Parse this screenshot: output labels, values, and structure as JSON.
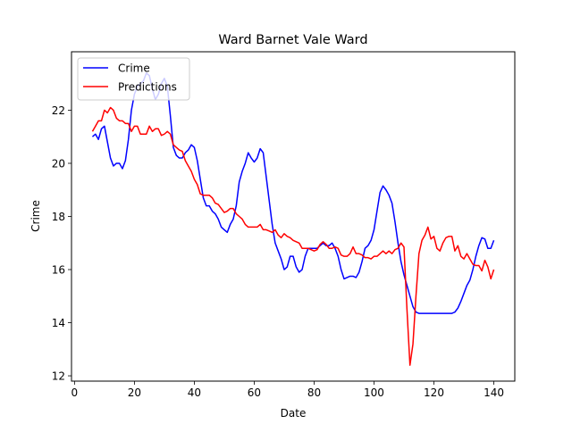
{
  "chart_data": {
    "type": "line",
    "title": "Ward Barnet Vale Ward",
    "xlabel": "Date",
    "ylabel": "Crime",
    "xlim": [
      -1,
      147
    ],
    "ylim": [
      11.8,
      24.2
    ],
    "x_ticks": [
      0,
      20,
      40,
      60,
      80,
      100,
      120,
      140
    ],
    "y_ticks": [
      12,
      14,
      16,
      18,
      20,
      22
    ],
    "grid": false,
    "legend_position": "upper-left",
    "series": [
      {
        "name": "Crime",
        "color": "#0000ff",
        "points": [
          [
            6,
            21.0
          ],
          [
            7,
            21.1
          ],
          [
            8,
            20.9
          ],
          [
            9,
            21.3
          ],
          [
            10,
            21.4
          ],
          [
            11,
            20.8
          ],
          [
            12,
            20.2
          ],
          [
            13,
            19.9
          ],
          [
            14,
            20.0
          ],
          [
            15,
            20.0
          ],
          [
            16,
            19.8
          ],
          [
            17,
            20.1
          ],
          [
            18,
            20.9
          ],
          [
            19,
            22.0
          ],
          [
            20,
            22.6
          ],
          [
            21,
            22.9
          ],
          [
            22,
            23.0
          ],
          [
            23,
            23.1
          ],
          [
            24,
            23.4
          ],
          [
            25,
            23.3
          ],
          [
            26,
            22.8
          ],
          [
            27,
            22.4
          ],
          [
            28,
            22.6
          ],
          [
            29,
            23.0
          ],
          [
            30,
            23.2
          ],
          [
            31,
            22.9
          ],
          [
            32,
            21.8
          ],
          [
            33,
            20.6
          ],
          [
            34,
            20.3
          ],
          [
            35,
            20.2
          ],
          [
            36,
            20.2
          ],
          [
            37,
            20.4
          ],
          [
            38,
            20.5
          ],
          [
            39,
            20.7
          ],
          [
            40,
            20.6
          ],
          [
            41,
            20.1
          ],
          [
            42,
            19.4
          ],
          [
            43,
            18.7
          ],
          [
            44,
            18.4
          ],
          [
            45,
            18.4
          ],
          [
            46,
            18.2
          ],
          [
            47,
            18.1
          ],
          [
            48,
            17.9
          ],
          [
            49,
            17.6
          ],
          [
            50,
            17.5
          ],
          [
            51,
            17.4
          ],
          [
            52,
            17.7
          ],
          [
            53,
            17.9
          ],
          [
            54,
            18.4
          ],
          [
            55,
            19.3
          ],
          [
            56,
            19.7
          ],
          [
            57,
            20.0
          ],
          [
            58,
            20.4
          ],
          [
            59,
            20.2
          ],
          [
            60,
            20.05
          ],
          [
            61,
            20.2
          ],
          [
            62,
            20.55
          ],
          [
            63,
            20.4
          ],
          [
            64,
            19.5
          ],
          [
            65,
            18.6
          ],
          [
            66,
            17.7
          ],
          [
            67,
            17.0
          ],
          [
            68,
            16.7
          ],
          [
            69,
            16.4
          ],
          [
            70,
            16.0
          ],
          [
            71,
            16.1
          ],
          [
            72,
            16.5
          ],
          [
            73,
            16.5
          ],
          [
            74,
            16.1
          ],
          [
            75,
            15.9
          ],
          [
            76,
            16.0
          ],
          [
            77,
            16.5
          ],
          [
            78,
            16.8
          ],
          [
            79,
            16.8
          ],
          [
            80,
            16.8
          ],
          [
            81,
            16.8
          ],
          [
            82,
            16.9
          ],
          [
            83,
            17.0
          ],
          [
            84,
            16.9
          ],
          [
            85,
            16.9
          ],
          [
            86,
            17.0
          ],
          [
            87,
            16.8
          ],
          [
            88,
            16.5
          ],
          [
            89,
            16.0
          ],
          [
            90,
            15.65
          ],
          [
            91,
            15.7
          ],
          [
            92,
            15.75
          ],
          [
            93,
            15.75
          ],
          [
            94,
            15.7
          ],
          [
            95,
            15.9
          ],
          [
            96,
            16.3
          ],
          [
            97,
            16.8
          ],
          [
            98,
            16.9
          ],
          [
            99,
            17.1
          ],
          [
            100,
            17.5
          ],
          [
            101,
            18.2
          ],
          [
            102,
            18.9
          ],
          [
            103,
            19.15
          ],
          [
            104,
            19.0
          ],
          [
            105,
            18.8
          ],
          [
            106,
            18.5
          ],
          [
            107,
            17.8
          ],
          [
            108,
            17.0
          ],
          [
            109,
            16.3
          ],
          [
            110,
            15.8
          ],
          [
            111,
            15.4
          ],
          [
            112,
            15.0
          ],
          [
            113,
            14.6
          ],
          [
            114,
            14.4
          ],
          [
            115,
            14.35
          ],
          [
            116,
            14.35
          ],
          [
            117,
            14.35
          ],
          [
            118,
            14.35
          ],
          [
            119,
            14.35
          ],
          [
            120,
            14.35
          ],
          [
            121,
            14.35
          ],
          [
            122,
            14.35
          ],
          [
            123,
            14.35
          ],
          [
            124,
            14.35
          ],
          [
            125,
            14.35
          ],
          [
            126,
            14.35
          ],
          [
            127,
            14.4
          ],
          [
            128,
            14.55
          ],
          [
            129,
            14.8
          ],
          [
            130,
            15.1
          ],
          [
            131,
            15.4
          ],
          [
            132,
            15.6
          ],
          [
            133,
            16.0
          ],
          [
            134,
            16.5
          ],
          [
            135,
            16.9
          ],
          [
            136,
            17.2
          ],
          [
            137,
            17.15
          ],
          [
            138,
            16.8
          ],
          [
            139,
            16.8
          ],
          [
            140,
            17.1
          ]
        ]
      },
      {
        "name": "Predictions",
        "color": "#ff0000",
        "points": [
          [
            6,
            21.2
          ],
          [
            7,
            21.4
          ],
          [
            8,
            21.6
          ],
          [
            9,
            21.6
          ],
          [
            10,
            22.0
          ],
          [
            11,
            21.9
          ],
          [
            12,
            22.1
          ],
          [
            13,
            22.0
          ],
          [
            14,
            21.7
          ],
          [
            15,
            21.6
          ],
          [
            16,
            21.6
          ],
          [
            17,
            21.5
          ],
          [
            18,
            21.5
          ],
          [
            19,
            21.2
          ],
          [
            20,
            21.4
          ],
          [
            21,
            21.4
          ],
          [
            22,
            21.1
          ],
          [
            23,
            21.1
          ],
          [
            24,
            21.1
          ],
          [
            25,
            21.4
          ],
          [
            26,
            21.2
          ],
          [
            27,
            21.3
          ],
          [
            28,
            21.3
          ],
          [
            29,
            21.05
          ],
          [
            30,
            21.1
          ],
          [
            31,
            21.2
          ],
          [
            32,
            21.1
          ],
          [
            33,
            20.7
          ],
          [
            34,
            20.6
          ],
          [
            35,
            20.5
          ],
          [
            36,
            20.45
          ],
          [
            37,
            20.1
          ],
          [
            38,
            19.9
          ],
          [
            39,
            19.7
          ],
          [
            40,
            19.4
          ],
          [
            41,
            19.2
          ],
          [
            42,
            18.85
          ],
          [
            43,
            18.8
          ],
          [
            44,
            18.8
          ],
          [
            45,
            18.8
          ],
          [
            46,
            18.7
          ],
          [
            47,
            18.5
          ],
          [
            48,
            18.45
          ],
          [
            49,
            18.3
          ],
          [
            50,
            18.15
          ],
          [
            51,
            18.2
          ],
          [
            52,
            18.3
          ],
          [
            53,
            18.3
          ],
          [
            54,
            18.1
          ],
          [
            55,
            18.0
          ],
          [
            56,
            17.9
          ],
          [
            57,
            17.7
          ],
          [
            58,
            17.6
          ],
          [
            59,
            17.6
          ],
          [
            60,
            17.6
          ],
          [
            61,
            17.6
          ],
          [
            62,
            17.7
          ],
          [
            63,
            17.5
          ],
          [
            64,
            17.5
          ],
          [
            65,
            17.45
          ],
          [
            66,
            17.4
          ],
          [
            67,
            17.5
          ],
          [
            68,
            17.3
          ],
          [
            69,
            17.2
          ],
          [
            70,
            17.35
          ],
          [
            71,
            17.25
          ],
          [
            72,
            17.2
          ],
          [
            73,
            17.1
          ],
          [
            74,
            17.05
          ],
          [
            75,
            17.0
          ],
          [
            76,
            16.8
          ],
          [
            77,
            16.8
          ],
          [
            78,
            16.8
          ],
          [
            79,
            16.75
          ],
          [
            80,
            16.7
          ],
          [
            81,
            16.75
          ],
          [
            82,
            16.95
          ],
          [
            83,
            17.05
          ],
          [
            84,
            16.95
          ],
          [
            85,
            16.8
          ],
          [
            86,
            16.8
          ],
          [
            87,
            16.85
          ],
          [
            88,
            16.8
          ],
          [
            89,
            16.55
          ],
          [
            90,
            16.5
          ],
          [
            91,
            16.5
          ],
          [
            92,
            16.6
          ],
          [
            93,
            16.85
          ],
          [
            94,
            16.6
          ],
          [
            95,
            16.6
          ],
          [
            96,
            16.55
          ],
          [
            97,
            16.45
          ],
          [
            98,
            16.45
          ],
          [
            99,
            16.4
          ],
          [
            100,
            16.5
          ],
          [
            101,
            16.5
          ],
          [
            102,
            16.6
          ],
          [
            103,
            16.7
          ],
          [
            104,
            16.6
          ],
          [
            105,
            16.7
          ],
          [
            106,
            16.6
          ],
          [
            107,
            16.75
          ],
          [
            108,
            16.8
          ],
          [
            109,
            17.0
          ],
          [
            110,
            16.85
          ],
          [
            111,
            14.5
          ],
          [
            112,
            12.4
          ],
          [
            113,
            13.2
          ],
          [
            114,
            15.0
          ],
          [
            115,
            16.6
          ],
          [
            116,
            17.1
          ],
          [
            117,
            17.3
          ],
          [
            118,
            17.6
          ],
          [
            119,
            17.15
          ],
          [
            120,
            17.25
          ],
          [
            121,
            16.8
          ],
          [
            122,
            16.7
          ],
          [
            123,
            17.0
          ],
          [
            124,
            17.2
          ],
          [
            125,
            17.25
          ],
          [
            126,
            17.25
          ],
          [
            127,
            16.7
          ],
          [
            128,
            16.9
          ],
          [
            129,
            16.5
          ],
          [
            130,
            16.4
          ],
          [
            131,
            16.6
          ],
          [
            132,
            16.4
          ],
          [
            133,
            16.2
          ],
          [
            134,
            16.15
          ],
          [
            135,
            16.15
          ],
          [
            136,
            15.95
          ],
          [
            137,
            16.35
          ],
          [
            138,
            16.1
          ],
          [
            139,
            15.65
          ],
          [
            140,
            16.0
          ]
        ]
      }
    ]
  }
}
